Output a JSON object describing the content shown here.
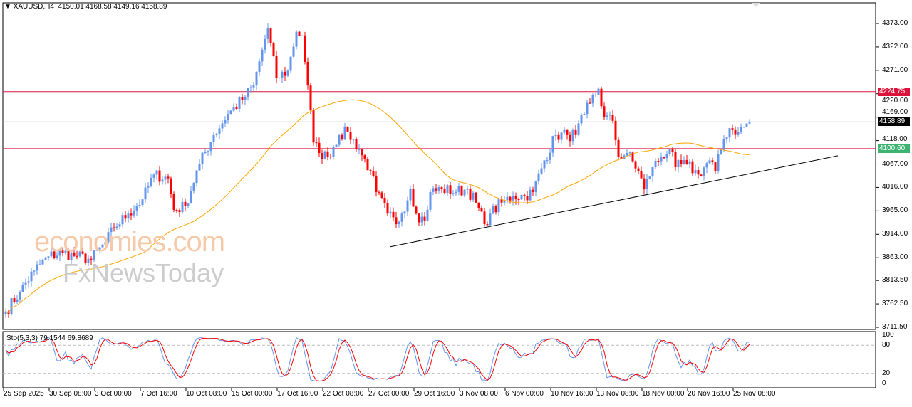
{
  "header": {
    "symbol": "XAUUSD,H4",
    "ohlc": "4150.01 4168.58 4149.16 4158.89"
  },
  "colors": {
    "bull": "#6495ED",
    "bear": "#FF0000",
    "ma": "#FFA500",
    "level": "#DC143C",
    "level_label_low": "#3CB371",
    "stoch_main": "#6495ED",
    "stoch_signal": "#FF0000"
  },
  "watermark": {
    "line1": "economies.com",
    "line2": "FxNewsToday"
  },
  "chart_data": {
    "type": "candlestick",
    "title": "XAUUSD,H4",
    "ylim": [
      3711.5,
      4373.0
    ],
    "yticks": [
      "4373.00",
      "4322.00",
      "4271.00",
      "4220.00",
      "4169.00",
      "4118.00",
      "4067.00",
      "4016.00",
      "3965.00",
      "3914.00",
      "3863.00",
      "3813.50",
      "3762.50",
      "3711.50"
    ],
    "xticks": [
      "25 Sep 2025",
      "30 Sep 08:00",
      "3 Oct 00:00",
      "7 Oct 16:00",
      "10 Oct 08:00",
      "15 Oct 00:00",
      "17 Oct 16:00",
      "22 Oct 08:00",
      "27 Oct 00:00",
      "29 Oct 16:00",
      "3 Nov 08:00",
      "6 Nov 00:00",
      "10 Nov 16:00",
      "13 Nov 08:00",
      "18 Nov 00:00",
      "20 Nov 16:00",
      "25 Nov 08:00"
    ],
    "close_path": [
      [
        0,
        3746
      ],
      [
        5,
        3789
      ],
      [
        10,
        3835
      ],
      [
        15,
        3866
      ],
      [
        20,
        3874
      ],
      [
        25,
        3866
      ],
      [
        30,
        3859
      ],
      [
        35,
        3897
      ],
      [
        38,
        3928
      ],
      [
        43,
        3959
      ],
      [
        48,
        3990
      ],
      [
        52,
        4044
      ],
      [
        57,
        4036
      ],
      [
        59,
        3967
      ],
      [
        63,
        3975
      ],
      [
        68,
        4067
      ],
      [
        73,
        4130
      ],
      [
        78,
        4176
      ],
      [
        83,
        4207
      ],
      [
        87,
        4238
      ],
      [
        90,
        4316
      ],
      [
        92,
        4362
      ],
      [
        95,
        4254
      ],
      [
        99,
        4270
      ],
      [
        102,
        4355
      ],
      [
        104,
        4347
      ],
      [
        106,
        4238
      ],
      [
        108,
        4114
      ],
      [
        110,
        4091
      ],
      [
        113,
        4083
      ],
      [
        117,
        4130
      ],
      [
        120,
        4137
      ],
      [
        124,
        4099
      ],
      [
        128,
        4052
      ],
      [
        130,
        4006
      ],
      [
        134,
        3959
      ],
      [
        137,
        3936
      ],
      [
        139,
        3959
      ],
      [
        142,
        4013
      ],
      [
        144,
        3959
      ],
      [
        147,
        3944
      ],
      [
        149,
        4006
      ],
      [
        153,
        4013
      ],
      [
        158,
        4006
      ],
      [
        162,
        4013
      ],
      [
        165,
        3983
      ],
      [
        168,
        3936
      ],
      [
        170,
        3959
      ],
      [
        174,
        3983
      ],
      [
        178,
        3998
      ],
      [
        182,
        3998
      ],
      [
        185,
        4006
      ],
      [
        189,
        4075
      ],
      [
        193,
        4130
      ],
      [
        197,
        4130
      ],
      [
        200,
        4130
      ],
      [
        203,
        4176
      ],
      [
        205,
        4199
      ],
      [
        208,
        4231
      ],
      [
        210,
        4169
      ],
      [
        213,
        4161
      ],
      [
        215,
        4083
      ],
      [
        218,
        4091
      ],
      [
        222,
        4052
      ],
      [
        224,
        4013
      ],
      [
        227,
        4060
      ],
      [
        230,
        4083
      ],
      [
        233,
        4099
      ],
      [
        235,
        4060
      ],
      [
        239,
        4067
      ],
      [
        243,
        4044
      ],
      [
        247,
        4075
      ],
      [
        249,
        4052
      ],
      [
        252,
        4122
      ],
      [
        254,
        4145
      ],
      [
        257,
        4137
      ],
      [
        261,
        4158.89
      ]
    ],
    "last_price": "4158.89",
    "levels": [
      {
        "price": 4224.75,
        "label": "4224.75"
      },
      {
        "price": 4100.6,
        "label": "4100.60"
      }
    ],
    "moving_average": {
      "period": 50
    },
    "trendline": {
      "from": [
        135,
        3887
      ],
      "to": [
        292,
        4085
      ]
    },
    "stochastic": {
      "label": "Sto(5,3,3) 79.1544 69.8689",
      "levels": [
        "100",
        "80",
        "20",
        "0"
      ]
    }
  }
}
